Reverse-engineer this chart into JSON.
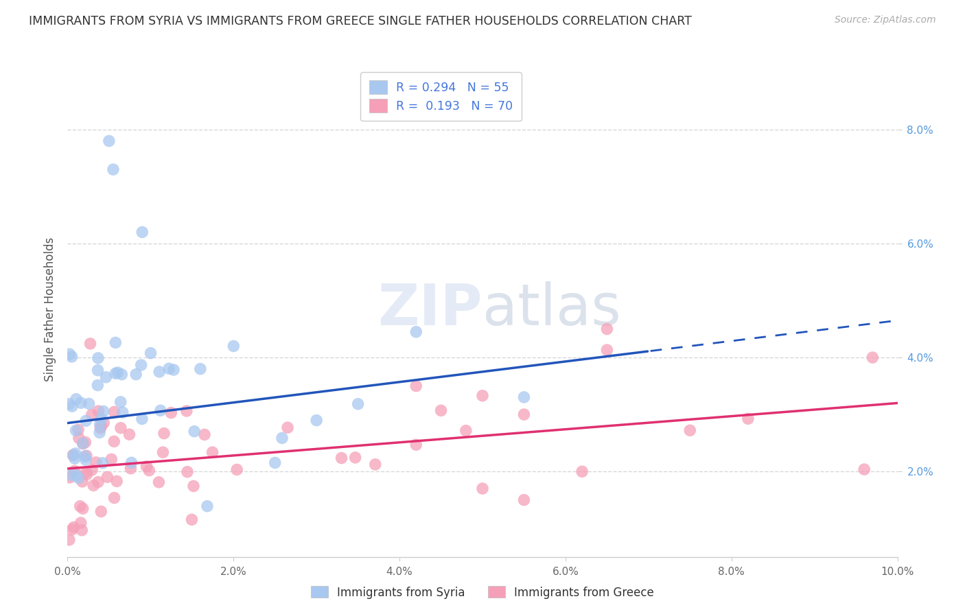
{
  "title": "IMMIGRANTS FROM SYRIA VS IMMIGRANTS FROM GREECE SINGLE FATHER HOUSEHOLDS CORRELATION CHART",
  "source": "Source: ZipAtlas.com",
  "ylabel": "Single Father Households",
  "xlim": [
    0.0,
    10.0
  ],
  "ylim": [
    0.5,
    9.2
  ],
  "yticks": [
    2.0,
    4.0,
    6.0,
    8.0
  ],
  "xticks": [
    0.0,
    2.0,
    4.0,
    6.0,
    8.0,
    10.0
  ],
  "blue_R": 0.294,
  "blue_N": 55,
  "pink_R": 0.193,
  "pink_N": 70,
  "blue_color": "#A8C8F0",
  "pink_color": "#F5A0B8",
  "blue_line_color": "#2255BB",
  "pink_line_color": "#E03070",
  "background_color": "#FFFFFF",
  "grid_color": "#CCCCCC",
  "legend_label_blue": "Immigrants from Syria",
  "legend_label_pink": "Immigrants from Greece",
  "blue_line_intercept": 2.85,
  "blue_line_slope": 0.18,
  "blue_solid_end": 7.0,
  "pink_line_intercept": 2.05,
  "pink_line_slope": 0.115,
  "pink_solid_end": 10.0
}
